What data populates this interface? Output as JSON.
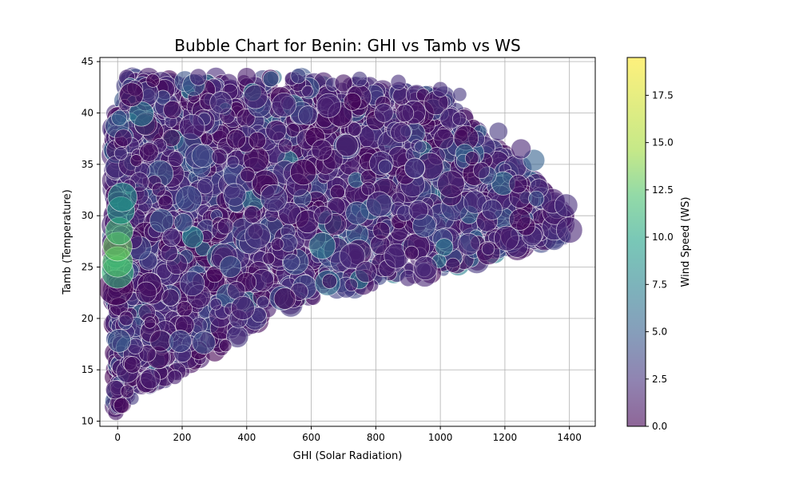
{
  "chart_data": {
    "type": "scatter",
    "title": "Bubble Chart for Benin: GHI vs Tamb vs WS",
    "xlabel": "GHI (Solar Radiation)",
    "ylabel": "Tamb (Temperature)",
    "xlim": [
      -55,
      1480
    ],
    "ylim": [
      9.5,
      45.4
    ],
    "xticks": [
      0,
      200,
      400,
      600,
      800,
      1000,
      1200,
      1400
    ],
    "yticks": [
      10,
      15,
      20,
      25,
      30,
      35,
      40,
      45
    ],
    "grid": true,
    "colorbar": {
      "label": "Wind Speed (WS)",
      "range": [
        0.0,
        19.5
      ],
      "ticks": [
        "0.0",
        "2.5",
        "5.0",
        "7.5",
        "10.0",
        "12.5",
        "15.0",
        "17.5"
      ],
      "colormap": "viridis",
      "alpha": 0.6
    },
    "colors": {
      "dark_purple": "#440154",
      "blue": "#3b528b",
      "teal": "#21918c",
      "green": "#5ec962",
      "yellow": "#fde725",
      "edge": "#ffffff",
      "grid": "#b0b0b0"
    },
    "points": [
      {
        "x": -5,
        "y": 23,
        "ws": 0.0,
        "size": 1.0
      },
      {
        "x": 0,
        "y": 24.5,
        "ws": 13.0,
        "size": 0.9
      },
      {
        "x": 0,
        "y": 25.5,
        "ws": 14.0,
        "size": 0.85
      },
      {
        "x": 0,
        "y": 27,
        "ws": 15.0,
        "size": 0.8
      },
      {
        "x": 5,
        "y": 28.5,
        "ws": 13.5,
        "size": 0.75
      },
      {
        "x": 10,
        "y": 30.5,
        "ws": 11.0,
        "size": 0.75
      },
      {
        "x": 15,
        "y": 31.8,
        "ws": 10.0,
        "size": 0.8
      },
      {
        "x": 5,
        "y": 39.5,
        "ws": 6.0,
        "size": 0.35
      },
      {
        "x": 1400,
        "y": 28.6,
        "ws": 2.0,
        "size": 0.7
      },
      {
        "x": 1390,
        "y": 31,
        "ws": 2.5,
        "size": 0.6
      },
      {
        "x": 1290,
        "y": 35.4,
        "ws": 6.0,
        "size": 0.55
      },
      {
        "x": 1250,
        "y": 36.5,
        "ws": 2.0,
        "size": 0.5
      },
      {
        "x": 1180,
        "y": 38.2,
        "ws": 3.0,
        "size": 0.45
      },
      {
        "x": 1060,
        "y": 41.8,
        "ws": 3.0,
        "size": 0.3
      },
      {
        "x": 1000,
        "y": 42.3,
        "ws": 2.5,
        "size": 0.35
      },
      {
        "x": 250,
        "y": 43.5,
        "ws": 2.0,
        "size": 0.4
      },
      {
        "x": 560,
        "y": 43.6,
        "ws": 4.0,
        "size": 0.35
      },
      {
        "x": 750,
        "y": 43.3,
        "ws": 3.0,
        "size": 0.35
      },
      {
        "x": 870,
        "y": 43,
        "ws": 2.5,
        "size": 0.35
      }
    ]
  }
}
